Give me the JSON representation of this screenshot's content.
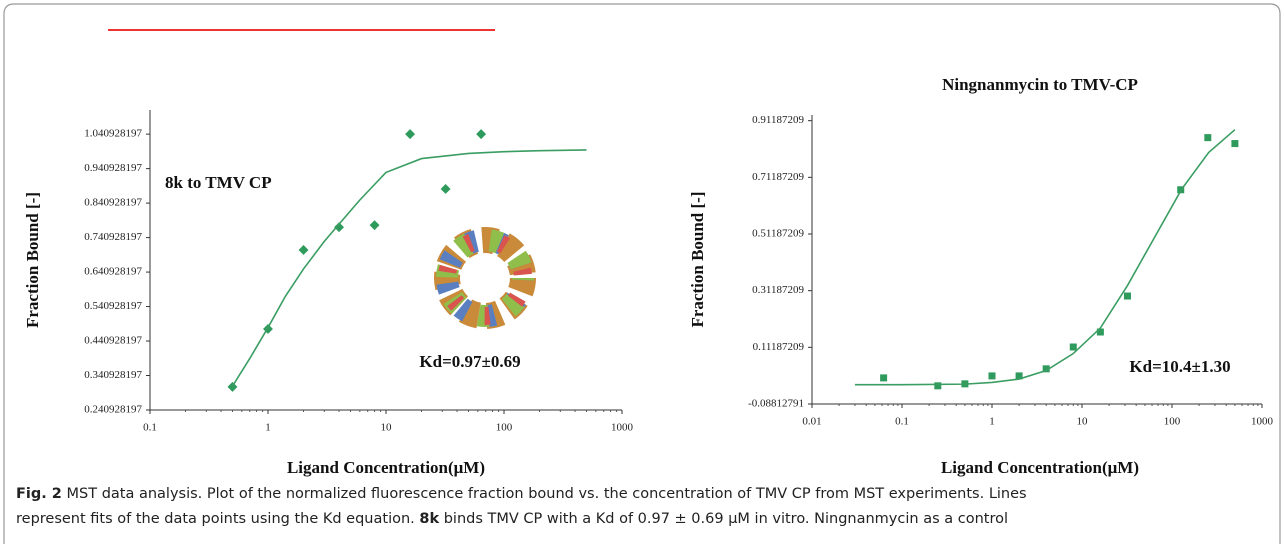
{
  "charts": [
    {
      "type": "scatter",
      "title": "8k to TMV CP",
      "x_label": "Ligand Concentration(μM)",
      "y_label": "Fraction Bound [-]",
      "annotation": "Kd=0.97±0.69",
      "xscale": "log",
      "xlim": [
        0.1,
        1000
      ],
      "xticks": [
        0.1,
        1,
        10,
        100,
        1000
      ],
      "ylim": [
        0.240928197,
        1.110928197
      ],
      "yticks": [
        0.240928197,
        0.340928197,
        0.440928197,
        0.540928197,
        0.640928197,
        0.740928197,
        0.840928197,
        0.940928197,
        1.040928197
      ],
      "series": [
        {
          "style": "points",
          "marker": "diamond",
          "color": "#2e9a5c",
          "x": [
            0.5,
            1,
            2,
            4,
            8,
            16,
            32,
            64
          ],
          "values": [
            0.308,
            0.476,
            0.705,
            0.771,
            0.777,
            1.041,
            0.882,
            1.041
          ]
        },
        {
          "style": "line",
          "color": "#3a9d62",
          "x": [
            0.5,
            0.7,
            1,
            1.4,
            2,
            3,
            4,
            6,
            10,
            20,
            50,
            100,
            200,
            500
          ],
          "values": [
            0.31,
            0.39,
            0.48,
            0.57,
            0.65,
            0.73,
            0.78,
            0.85,
            0.93,
            0.97,
            0.985,
            0.99,
            0.993,
            0.995
          ]
        }
      ]
    },
    {
      "type": "scatter",
      "title": "Ningnanmycin to TMV-CP",
      "x_label": "Ligand Concentration(μM)",
      "y_label": "Fraction Bound [-]",
      "annotation": "Kd=10.4±1.30",
      "xscale": "log",
      "xlim": [
        0.01,
        1000
      ],
      "xticks": [
        0.01,
        0.1,
        1,
        10,
        100,
        1000
      ],
      "ylim": [
        -0.08812791,
        0.93187209
      ],
      "yticks": [
        -0.08812791,
        0.11187209,
        0.31187209,
        0.51187209,
        0.71187209,
        0.91187209
      ],
      "series": [
        {
          "style": "points",
          "marker": "square",
          "color": "#2e9a5c",
          "x": [
            0.0625,
            0.25,
            0.5,
            1,
            2,
            4,
            8,
            16,
            32,
            125,
            250,
            500
          ],
          "values": [
            0.004,
            -0.024,
            -0.017,
            0.011,
            0.011,
            0.036,
            0.113,
            0.166,
            0.293,
            0.668,
            0.852,
            0.831
          ]
        },
        {
          "style": "line",
          "color": "#3a9d62",
          "x": [
            0.03,
            0.1,
            0.5,
            1,
            2,
            4,
            8,
            16,
            32,
            64,
            128,
            256,
            500
          ],
          "values": [
            -0.02,
            -0.02,
            -0.018,
            -0.012,
            0.0,
            0.03,
            0.09,
            0.18,
            0.33,
            0.5,
            0.67,
            0.8,
            0.88
          ]
        }
      ]
    }
  ],
  "caption": {
    "label": "Fig. 2",
    "line1": "MST data analysis. Plot of the normalized fluorescence fraction bound vs. the concentration of TMV CP from MST experiments. Lines",
    "line2_a": "represent fits of the data points using the Kd equation.",
    "line2_bold": "8k",
    "line2_b": "binds TMV CP with a Kd of 0.97 ± 0.69 μM in vitro. Ningnanmycin as a control"
  }
}
